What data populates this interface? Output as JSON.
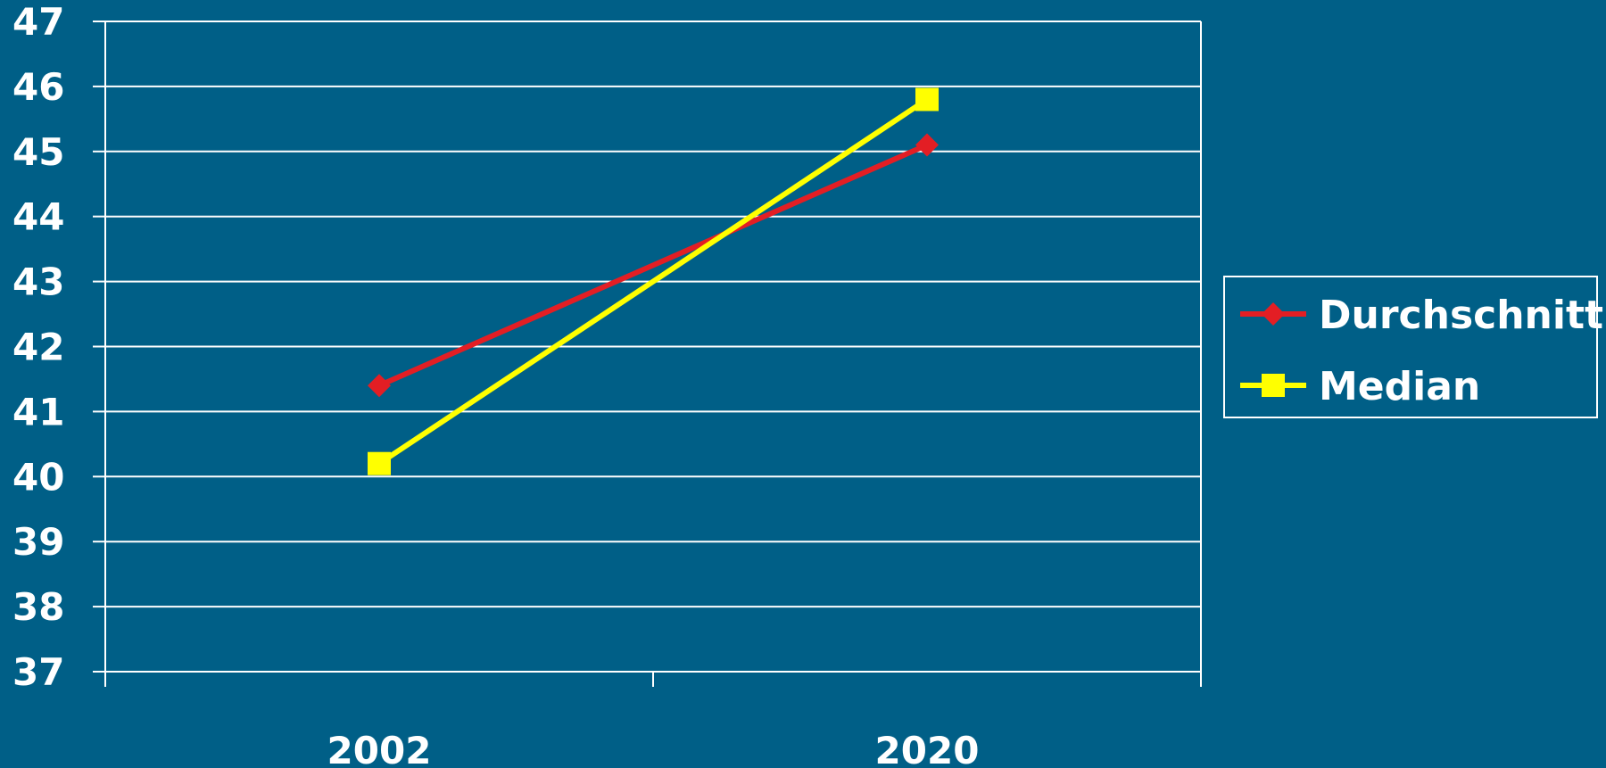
{
  "chart_data": {
    "type": "line",
    "categories": [
      "2002",
      "2020"
    ],
    "series": [
      {
        "name": "Durchschnitt",
        "values": [
          41.4,
          45.1
        ],
        "color": "#e31e24",
        "marker": "diamond"
      },
      {
        "name": "Median",
        "values": [
          40.2,
          45.8
        ],
        "color": "#ffff00",
        "marker": "square"
      }
    ],
    "title": "",
    "xlabel": "",
    "ylabel": "",
    "ylim": [
      37,
      47
    ],
    "yticks": [
      "37",
      "38",
      "39",
      "40",
      "41",
      "42",
      "43",
      "44",
      "45",
      "46",
      "47"
    ],
    "grid": true,
    "legend": "right",
    "colors": {
      "background": "#005f87",
      "axis": "#ffffff",
      "grid": "#ffffff"
    }
  }
}
